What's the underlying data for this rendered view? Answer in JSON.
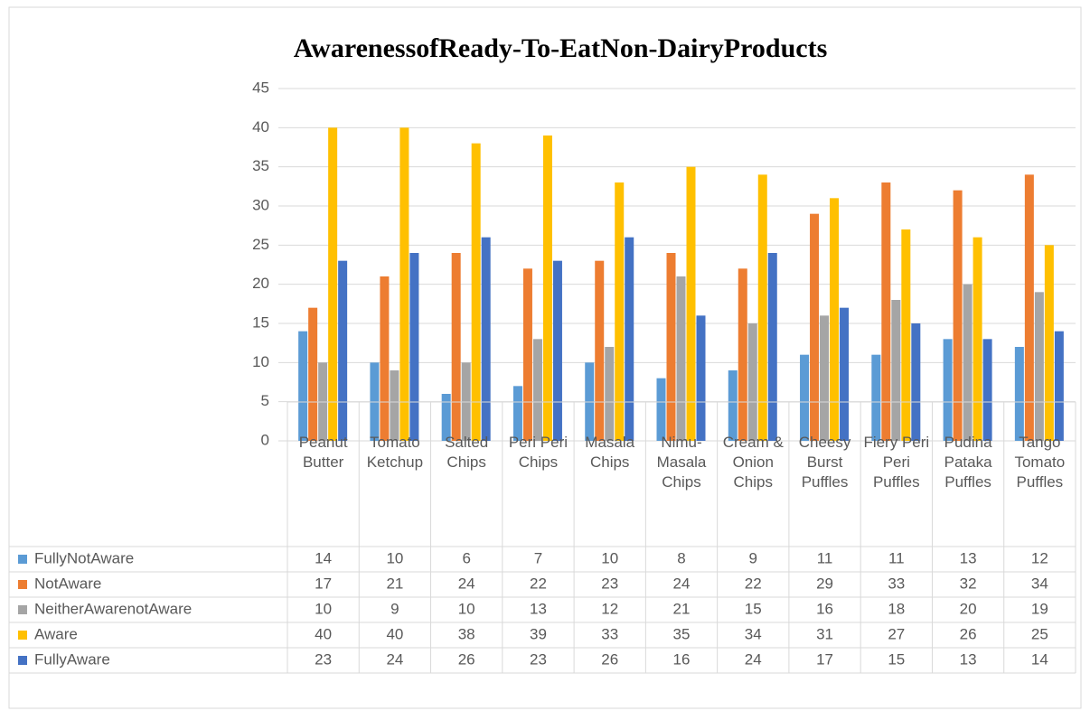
{
  "chart_data": {
    "type": "bar",
    "title": "AwarenessofReady-To-EatNon-DairyProducts",
    "categories": [
      "Peanut Butter",
      "Tomato Ketchup",
      "Salted Chips",
      "Peri Peri Chips",
      "Masala Chips",
      "Nimu-Masala Chips",
      "Cream & Onion Chips",
      "Cheesy Burst Puffles",
      "Fiery Peri Peri Puffles",
      "Pudina Pataka Puffles",
      "Tango Tomato Puffles"
    ],
    "series": [
      {
        "name": "FullyNotAware",
        "color": "#5b9bd5",
        "values": [
          14,
          10,
          6,
          7,
          10,
          8,
          9,
          11,
          11,
          13,
          12
        ]
      },
      {
        "name": "NotAware",
        "color": "#ed7d31",
        "values": [
          17,
          21,
          24,
          22,
          23,
          24,
          22,
          29,
          33,
          32,
          34
        ]
      },
      {
        "name": "NeitherAwarenotAware",
        "color": "#a5a5a5",
        "values": [
          10,
          9,
          10,
          13,
          12,
          21,
          15,
          16,
          18,
          20,
          19
        ]
      },
      {
        "name": "Aware",
        "color": "#ffc000",
        "values": [
          40,
          40,
          38,
          39,
          33,
          35,
          34,
          31,
          27,
          26,
          25
        ]
      },
      {
        "name": "FullyAware",
        "color": "#4472c4",
        "values": [
          23,
          24,
          26,
          23,
          26,
          16,
          24,
          17,
          15,
          13,
          14
        ]
      }
    ],
    "ylim": [
      0,
      45
    ],
    "yticks": [
      0,
      5,
      10,
      15,
      20,
      25,
      30,
      35,
      40,
      45
    ],
    "grid": true
  }
}
